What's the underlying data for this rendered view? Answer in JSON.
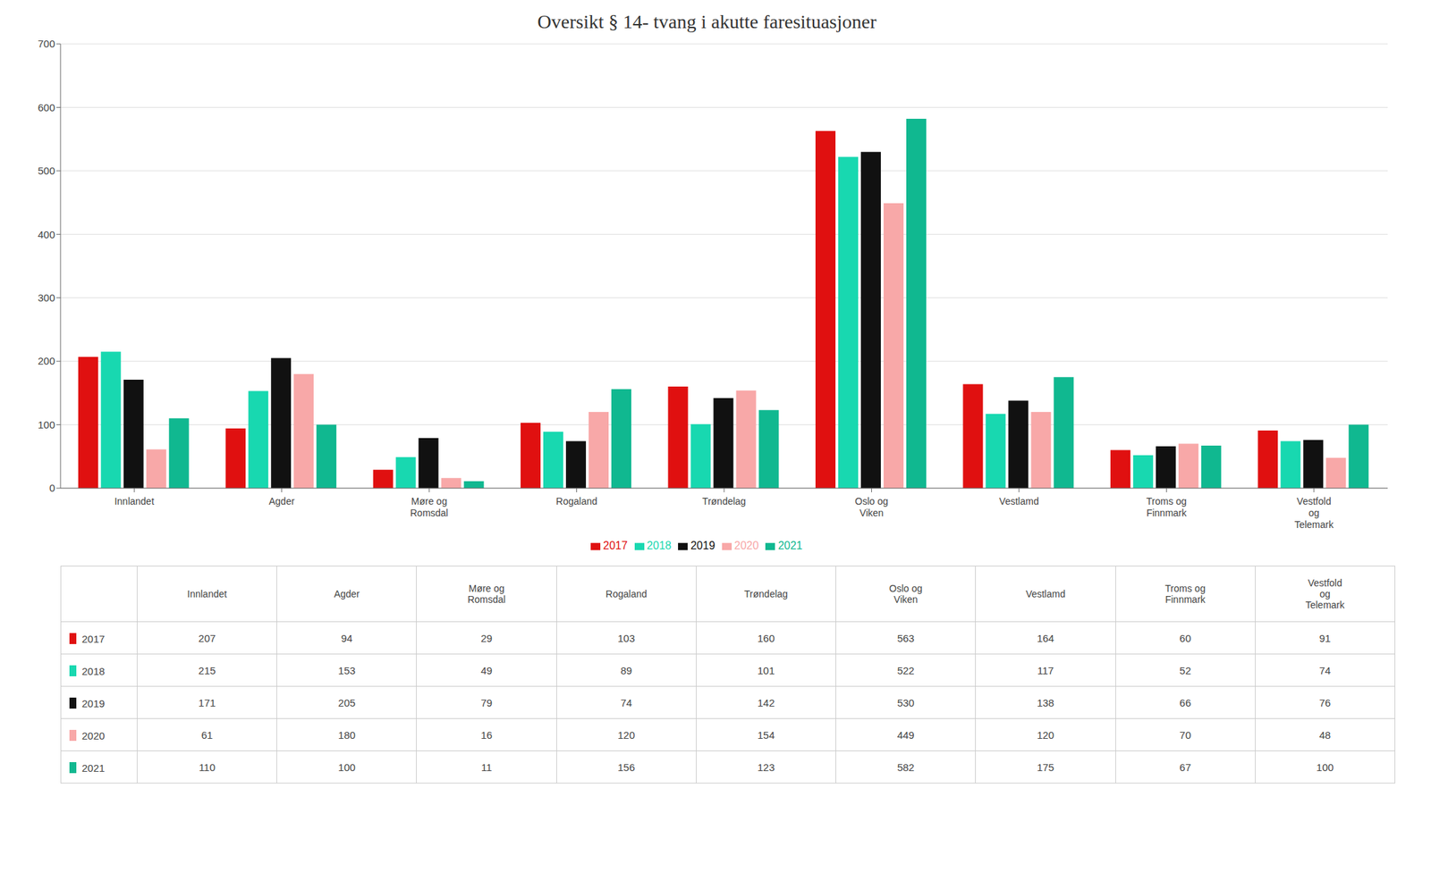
{
  "chart_data": {
    "type": "bar",
    "title": "Oversikt § 14- tvang i akutte faresituasjoner",
    "categories": [
      "Innlandet",
      "Agder",
      "Møre og\nRomsdal",
      "Rogaland",
      "Trøndelag",
      "Oslo og\nViken",
      "Vestlamd",
      "Troms og\nFinnmark",
      "Vestfold\nog\nTelemark"
    ],
    "series": [
      {
        "name": "2017",
        "color": "#e01010",
        "values": [
          207,
          94,
          29,
          103,
          160,
          563,
          164,
          60,
          91
        ]
      },
      {
        "name": "2018",
        "color": "#18d8b0",
        "values": [
          215,
          153,
          49,
          89,
          101,
          522,
          117,
          52,
          74
        ]
      },
      {
        "name": "2019",
        "color": "#111111",
        "values": [
          171,
          205,
          79,
          74,
          142,
          530,
          138,
          66,
          76
        ]
      },
      {
        "name": "2020",
        "color": "#f8a8a8",
        "values": [
          61,
          180,
          16,
          120,
          154,
          449,
          120,
          70,
          48
        ]
      },
      {
        "name": "2021",
        "color": "#10b890",
        "values": [
          110,
          100,
          11,
          156,
          123,
          582,
          175,
          67,
          100
        ]
      }
    ],
    "ylim": [
      0,
      700
    ],
    "yticks": [
      0,
      100,
      200,
      300,
      400,
      500,
      600,
      700
    ],
    "grid": true,
    "legend": "bottom"
  }
}
